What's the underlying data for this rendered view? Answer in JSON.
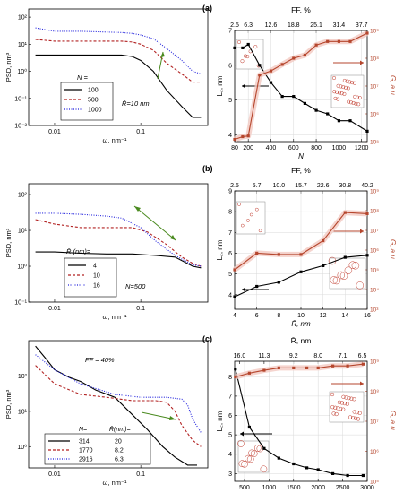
{
  "chart_data": [
    {
      "id": "left1",
      "type": "line",
      "log_x": true,
      "log_y": true,
      "xlim": [
        0.005,
        0.6
      ],
      "ylim": [
        0.01,
        200
      ],
      "xlabel": "ω, nm⁻¹",
      "ylabel": "PSD, nm³",
      "xticks": [
        {
          "v": 0.01,
          "label": "0.01"
        },
        {
          "v": 0.1,
          "label": "0.1"
        }
      ],
      "yticks": [
        {
          "v": 0.01,
          "label": "10⁻²"
        },
        {
          "v": 0.1,
          "label": "10⁻¹"
        },
        {
          "v": 1,
          "label": "10⁰"
        },
        {
          "v": 10,
          "label": "10¹"
        },
        {
          "v": 100,
          "label": "10²"
        }
      ],
      "legend_title": "N =",
      "annotation": "R̄=10 nm",
      "series": [
        {
          "name": "100",
          "color": "#000000",
          "dash": "",
          "x": [
            0.006,
            0.01,
            0.02,
            0.04,
            0.06,
            0.08,
            0.1,
            0.14,
            0.2,
            0.3,
            0.4,
            0.5
          ],
          "y": [
            4,
            4,
            4,
            4,
            4,
            3.5,
            2.5,
            1,
            0.2,
            0.05,
            0.02,
            0.02
          ]
        },
        {
          "name": "500",
          "color": "#b22222",
          "dash": "3,2",
          "x": [
            0.006,
            0.01,
            0.02,
            0.04,
            0.06,
            0.08,
            0.1,
            0.14,
            0.2,
            0.3,
            0.4,
            0.5
          ],
          "y": [
            15,
            13,
            13,
            13,
            13,
            12,
            10,
            6,
            2,
            0.8,
            0.4,
            0.4
          ]
        },
        {
          "name": "1000",
          "color": "#2222dd",
          "dash": "1,1.5",
          "x": [
            0.006,
            0.01,
            0.02,
            0.04,
            0.06,
            0.08,
            0.1,
            0.14,
            0.2,
            0.3,
            0.4,
            0.5
          ],
          "y": [
            40,
            30,
            30,
            28,
            27,
            25,
            22,
            16,
            7,
            2.5,
            1,
            0.8
          ]
        }
      ]
    },
    {
      "id": "left2",
      "type": "line",
      "log_x": true,
      "log_y": true,
      "xlim": [
        0.005,
        0.6
      ],
      "ylim": [
        0.1,
        200
      ],
      "xlabel": "ω, nm⁻¹",
      "ylabel": "PSD, nm³",
      "xticks": [
        {
          "v": 0.01,
          "label": "0.01"
        },
        {
          "v": 0.1,
          "label": "0.1"
        }
      ],
      "yticks": [
        {
          "v": 0.1,
          "label": "10⁻¹"
        },
        {
          "v": 1,
          "label": "10⁰"
        },
        {
          "v": 10,
          "label": "10¹"
        },
        {
          "v": 100,
          "label": "10²"
        }
      ],
      "legend_title": "R̄ (nm)=",
      "annotation": "N=500",
      "series": [
        {
          "name": "4",
          "color": "#000000",
          "dash": "",
          "x": [
            0.006,
            0.01,
            0.02,
            0.04,
            0.08,
            0.15,
            0.25,
            0.4,
            0.5
          ],
          "y": [
            2.5,
            2.5,
            2.3,
            2.2,
            2.2,
            2,
            1.8,
            1,
            0.9
          ]
        },
        {
          "name": "10",
          "color": "#b22222",
          "dash": "3,2",
          "x": [
            0.006,
            0.01,
            0.02,
            0.04,
            0.08,
            0.12,
            0.2,
            0.3,
            0.4,
            0.5
          ],
          "y": [
            20,
            15,
            12,
            12,
            12,
            9,
            4,
            1.8,
            1.2,
            1
          ]
        },
        {
          "name": "16",
          "color": "#2222dd",
          "dash": "1,1.5",
          "x": [
            0.006,
            0.01,
            0.02,
            0.04,
            0.06,
            0.1,
            0.15,
            0.25,
            0.4,
            0.5
          ],
          "y": [
            30,
            30,
            28,
            25,
            22,
            12,
            5,
            2,
            1.1,
            1
          ]
        }
      ]
    },
    {
      "id": "left3",
      "type": "line",
      "log_x": true,
      "log_y": true,
      "xlim": [
        0.005,
        0.6
      ],
      "ylim": [
        0.25,
        1000
      ],
      "xlabel": "ω, nm⁻¹",
      "ylabel": "PSD, nm³",
      "title": "FF = 40%",
      "xticks": [
        {
          "v": 0.01,
          "label": "0.01"
        },
        {
          "v": 0.1,
          "label": "0.1"
        }
      ],
      "yticks": [
        {
          "v": 1,
          "label": "10⁰"
        },
        {
          "v": 10,
          "label": "10¹"
        },
        {
          "v": 100,
          "label": "10²"
        }
      ],
      "legend_title": "N=",
      "legend_title2": "R̄(nm)=",
      "series": [
        {
          "name": "314",
          "name2": "20",
          "color": "#000000",
          "dash": "",
          "x": [
            0.006,
            0.008,
            0.01,
            0.015,
            0.02,
            0.03,
            0.05,
            0.08,
            0.12,
            0.18,
            0.25,
            0.35,
            0.45
          ],
          "y": [
            700,
            300,
            150,
            90,
            70,
            40,
            25,
            8,
            3,
            1,
            0.5,
            0.3,
            0.3
          ]
        },
        {
          "name": "1770",
          "name2": "8.2",
          "color": "#b22222",
          "dash": "3,2",
          "x": [
            0.006,
            0.01,
            0.02,
            0.04,
            0.08,
            0.15,
            0.2,
            0.25,
            0.3,
            0.4,
            0.5
          ],
          "y": [
            200,
            60,
            30,
            25,
            20,
            20,
            18,
            10,
            4,
            1.5,
            1
          ]
        },
        {
          "name": "2916",
          "name2": "6.3",
          "color": "#2222dd",
          "dash": "1,1.5",
          "x": [
            0.006,
            0.01,
            0.02,
            0.05,
            0.1,
            0.2,
            0.3,
            0.35,
            0.4,
            0.5
          ],
          "y": [
            400,
            150,
            60,
            30,
            25,
            25,
            22,
            15,
            6,
            2.5
          ]
        }
      ]
    },
    {
      "id": "a",
      "panel_label": "(a)",
      "type": "line",
      "xlim": [
        80,
        1250
      ],
      "ylim": [
        3.8,
        7.0
      ],
      "y2_log": true,
      "y2lim": [
        100000,
        1000000000
      ],
      "xlabel": "N",
      "ylabel": "L꜀, nm",
      "y2label": "G, a.u.",
      "top_axis_label": "FF, %",
      "top_ticks": [
        {
          "v": 80,
          "label": "2.5"
        },
        {
          "v": 200,
          "label": "6.3"
        },
        {
          "v": 400,
          "label": "12.6"
        },
        {
          "v": 600,
          "label": "18.8"
        },
        {
          "v": 800,
          "label": "25.1"
        },
        {
          "v": 1000,
          "label": "31.4"
        },
        {
          "v": 1200,
          "label": "37.7"
        }
      ],
      "xticks": [
        {
          "v": 80,
          "label": "80"
        },
        {
          "v": 200,
          "label": "200"
        },
        {
          "v": 400,
          "label": "400"
        },
        {
          "v": 600,
          "label": "600"
        },
        {
          "v": 800,
          "label": "800"
        },
        {
          "v": 1000,
          "label": "1000"
        },
        {
          "v": 1200,
          "label": "1200"
        }
      ],
      "yticks": [
        {
          "v": 4,
          "label": "4"
        },
        {
          "v": 5,
          "label": "5"
        },
        {
          "v": 6,
          "label": "6"
        },
        {
          "v": 7,
          "label": "7"
        }
      ],
      "y2ticks": [
        {
          "v": 100000,
          "label": "10⁵"
        },
        {
          "v": 1000000,
          "label": "10⁶"
        },
        {
          "v": 10000000,
          "label": "10⁷"
        },
        {
          "v": 100000000,
          "label": "10⁸"
        },
        {
          "v": 1000000000,
          "label": "10⁹"
        }
      ],
      "series": [
        {
          "axis": "left",
          "color": "#000000",
          "x": [
            80,
            150,
            200,
            300,
            400,
            500,
            600,
            700,
            800,
            900,
            1000,
            1100,
            1250
          ],
          "y": [
            6.5,
            6.5,
            6.6,
            6.0,
            5.5,
            5.1,
            5.1,
            4.9,
            4.7,
            4.6,
            4.4,
            4.4,
            4.1
          ]
        },
        {
          "axis": "right",
          "color": "#b5462d",
          "x": [
            80,
            150,
            200,
            300,
            400,
            500,
            600,
            700,
            800,
            900,
            1000,
            1100,
            1250
          ],
          "y": [
            120000.0,
            150000.0,
            160000.0,
            25000000.0,
            35000000.0,
            60000000.0,
            100000000.0,
            130000000.0,
            300000000.0,
            400000000.0,
            400000000.0,
            400000000.0,
            800000000.0
          ]
        }
      ]
    },
    {
      "id": "b",
      "panel_label": "(b)",
      "type": "line",
      "xlim": [
        4,
        16
      ],
      "ylim": [
        3.3,
        9.0
      ],
      "y2_log": true,
      "y2lim": [
        1000,
        1000000000
      ],
      "xlabel": "R̄, nm",
      "ylabel": "L꜀, nm",
      "y2label": "G, a.u.",
      "top_axis_label": "FF, %",
      "top_ticks": [
        {
          "v": 4,
          "label": "2.5"
        },
        {
          "v": 6,
          "label": "5.7"
        },
        {
          "v": 8,
          "label": "10.0"
        },
        {
          "v": 10,
          "label": "15.7"
        },
        {
          "v": 12,
          "label": "22.6"
        },
        {
          "v": 14,
          "label": "30.8"
        },
        {
          "v": 16,
          "label": "40.2"
        }
      ],
      "xticks": [
        {
          "v": 4,
          "label": "4"
        },
        {
          "v": 6,
          "label": "6"
        },
        {
          "v": 8,
          "label": "8"
        },
        {
          "v": 10,
          "label": "10"
        },
        {
          "v": 12,
          "label": "12"
        },
        {
          "v": 14,
          "label": "14"
        },
        {
          "v": 16,
          "label": "16"
        }
      ],
      "yticks": [
        {
          "v": 4,
          "label": "4"
        },
        {
          "v": 5,
          "label": "5"
        },
        {
          "v": 6,
          "label": "6"
        },
        {
          "v": 7,
          "label": "7"
        },
        {
          "v": 8,
          "label": "8"
        },
        {
          "v": 9,
          "label": "9"
        }
      ],
      "y2ticks": [
        {
          "v": 1000,
          "label": "10³"
        },
        {
          "v": 10000,
          "label": "10⁴"
        },
        {
          "v": 100000,
          "label": "10⁵"
        },
        {
          "v": 1000000,
          "label": "10⁶"
        },
        {
          "v": 10000000,
          "label": "10⁷"
        },
        {
          "v": 100000000,
          "label": "10⁸"
        },
        {
          "v": 1000000000,
          "label": "10⁹"
        }
      ],
      "series": [
        {
          "axis": "left",
          "color": "#000000",
          "x": [
            4,
            6,
            8,
            10,
            12,
            14,
            16
          ],
          "y": [
            3.9,
            4.4,
            4.6,
            5.1,
            5.4,
            5.8,
            5.9
          ]
        },
        {
          "axis": "right",
          "color": "#b5462d",
          "x": [
            4,
            6,
            8,
            10,
            12,
            14,
            16
          ],
          "y": [
            100000.0,
            700000.0,
            600000.0,
            600000.0,
            3000000.0,
            80000000.0,
            70000000.0
          ]
        }
      ]
    },
    {
      "id": "c",
      "panel_label": "(c)",
      "type": "line",
      "xlim": [
        300,
        3000
      ],
      "ylim": [
        2.6,
        8.8
      ],
      "y2_log": true,
      "y2lim": [
        100000,
        1000000000
      ],
      "xlabel": "N",
      "ylabel": "L꜀, nm",
      "y2label": "G, a.u.",
      "top_axis_label": "R̄, nm",
      "top_ticks": [
        {
          "v": 400,
          "label": "16.0"
        },
        {
          "v": 900,
          "label": "11.3"
        },
        {
          "v": 1500,
          "label": "9.2"
        },
        {
          "v": 2000,
          "label": "8.0"
        },
        {
          "v": 2500,
          "label": "7.1"
        },
        {
          "v": 2900,
          "label": "6.5"
        }
      ],
      "xticks": [
        {
          "v": 500,
          "label": "500"
        },
        {
          "v": 1000,
          "label": "1000"
        },
        {
          "v": 1500,
          "label": "1500"
        },
        {
          "v": 2000,
          "label": "2000"
        },
        {
          "v": 2500,
          "label": "2500"
        },
        {
          "v": 3000,
          "label": "3000"
        }
      ],
      "yticks": [
        {
          "v": 3,
          "label": "3"
        },
        {
          "v": 4,
          "label": "4"
        },
        {
          "v": 5,
          "label": "5"
        },
        {
          "v": 6,
          "label": "6"
        },
        {
          "v": 7,
          "label": "7"
        },
        {
          "v": 8,
          "label": "8"
        }
      ],
      "y2ticks": [
        {
          "v": 100000,
          "label": "10⁵"
        },
        {
          "v": 1000000,
          "label": "10⁶"
        },
        {
          "v": 10000000,
          "label": "10⁷"
        },
        {
          "v": 100000000,
          "label": "10⁸"
        },
        {
          "v": 1000000000,
          "label": "10⁹"
        }
      ],
      "series": [
        {
          "axis": "left",
          "color": "#000000",
          "x": [
            314,
            600,
            900,
            1200,
            1500,
            1770,
            2000,
            2300,
            2600,
            2916
          ],
          "y": [
            8.4,
            5.4,
            4.3,
            3.8,
            3.5,
            3.3,
            3.2,
            3.0,
            2.9,
            2.9
          ]
        },
        {
          "axis": "right",
          "color": "#b5462d",
          "x": [
            314,
            600,
            900,
            1200,
            1500,
            1770,
            2000,
            2300,
            2600,
            2916
          ],
          "y": [
            300000000.0,
            400000000.0,
            500000000.0,
            600000000.0,
            600000000.0,
            600000000.0,
            600000000.0,
            700000000.0,
            700000000.0,
            800000000.0
          ]
        }
      ]
    }
  ]
}
